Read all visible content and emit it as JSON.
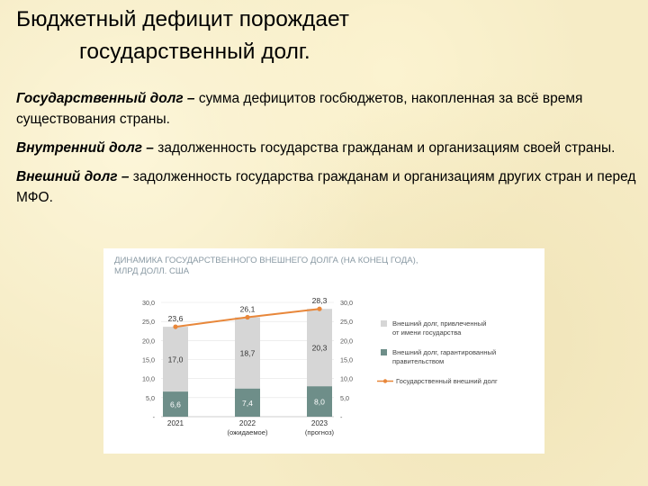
{
  "slide": {
    "title_line1": "Бюджетный дефицит порождает",
    "title_line2": "государственный долг.",
    "definitions": [
      {
        "term": "Государственный долг –",
        "text": " сумма дефицитов госбюджетов, накопленная за всё время существования страны."
      },
      {
        "term": "Внутренний долг –",
        "text": " задолженность государства гражданам и организациям своей страны."
      },
      {
        "term": "Внешний долг –",
        "text": " задолженность государства гражданам и организациям других стран и перед МФО."
      }
    ]
  },
  "chart_data": {
    "type": "bar",
    "title_line1": "ДИНАМИКА ГОСУДАРСТВЕННОГО ВНЕШНЕГО ДОЛГА (НА КОНЕЦ ГОДА),",
    "title_line2": "МЛРД ДОЛЛ. США",
    "stacked": true,
    "categories": [
      "2021",
      "2022",
      "2023"
    ],
    "category_notes": [
      "",
      "(ожидаемое)",
      "(прогноз)"
    ],
    "series": [
      {
        "name": "Внешний долг, гарантированный правительством",
        "name_lines": [
          "Внешний долг, гарантированный",
          "правительством"
        ],
        "values": [
          6.6,
          7.4,
          8.0
        ],
        "labels": [
          "6,6",
          "7,4",
          "8,0"
        ],
        "color": "#6e8e89",
        "kind": "bar"
      },
      {
        "name": "Внешний долг, привлеченный от имени государства",
        "name_lines": [
          "Внешний долг, привлеченный",
          "от имени государства"
        ],
        "values": [
          17.0,
          18.7,
          20.3
        ],
        "labels": [
          "17,0",
          "18,7",
          "20,3"
        ],
        "color": "#d6d6d6",
        "kind": "bar"
      },
      {
        "name": "Государственный внешний долг",
        "name_lines": [
          "Государственный внешний долг"
        ],
        "values": [
          23.6,
          26.1,
          28.3
        ],
        "labels": [
          "23,6",
          "26,1",
          "28,3"
        ],
        "color": "#e8873a",
        "kind": "line"
      }
    ],
    "ylim": [
      0,
      30
    ],
    "y_ticks": [
      {
        "value": 0,
        "label": "-"
      },
      {
        "value": 5,
        "label": "5,0"
      },
      {
        "value": 10,
        "label": "10,0"
      },
      {
        "value": 15,
        "label": "15,0"
      },
      {
        "value": 20,
        "label": "20,0"
      },
      {
        "value": 25,
        "label": "25,0"
      },
      {
        "value": 30,
        "label": "30,0"
      }
    ],
    "grid": true,
    "legend_position": "right"
  },
  "colors": {
    "background": "#f6ecc6",
    "chart_title": "#8a9aa4",
    "accent_line": "#e8873a",
    "bar_guaranteed": "#6e8e89",
    "bar_sovereign": "#d6d6d6"
  }
}
